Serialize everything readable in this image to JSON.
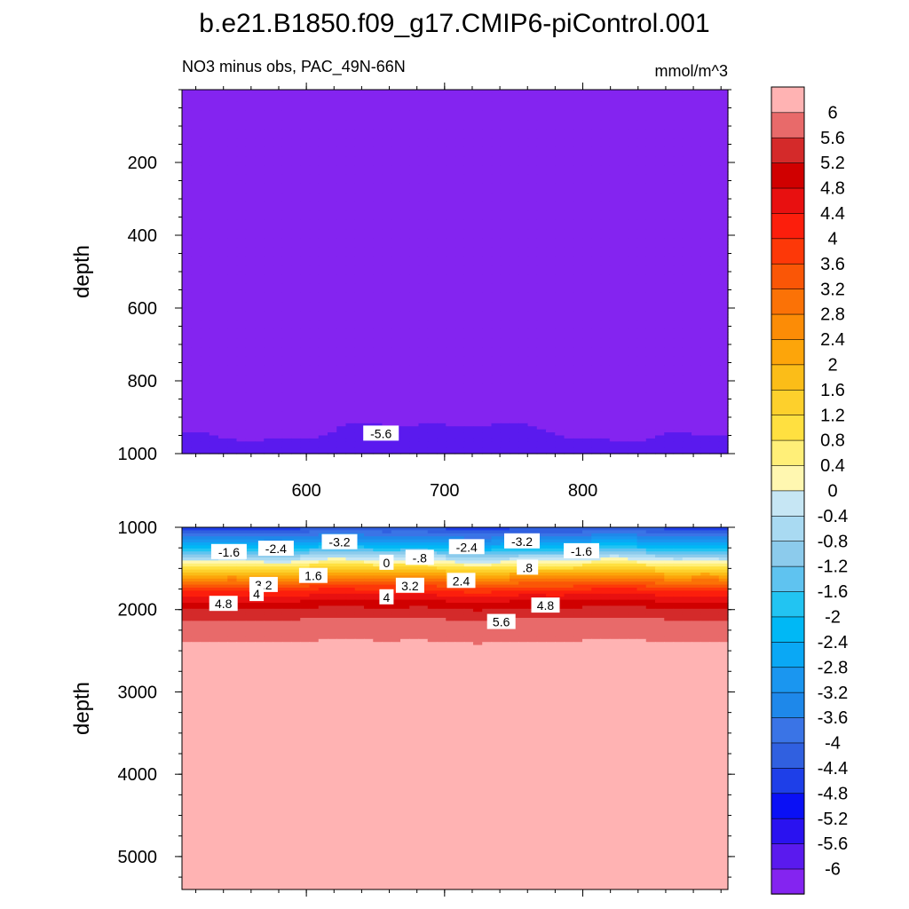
{
  "chart_data": {
    "type": "heatmap",
    "title": "b.e21.B1850.f09_g17.CMIP6-piControl.001",
    "subtitle_left": "NO3 minus obs, PAC_49N-66N",
    "subtitle_right": "mmol/m^3",
    "panels": [
      {
        "name": "upper",
        "ylabel": "depth",
        "xlim": [
          510,
          905
        ],
        "ylim": [
          1000,
          0
        ],
        "yticks": [
          200,
          400,
          600,
          800,
          1000
        ],
        "xticks": [
          600,
          700,
          800
        ],
        "fill_value": -6.2,
        "contour_labels": [
          {
            "text": "-5.6",
            "x": 654,
            "y": 945
          }
        ]
      },
      {
        "name": "lower",
        "ylabel": "depth",
        "xlim": [
          510,
          905
        ],
        "ylim": [
          5400,
          1000
        ],
        "yticks": [
          1000,
          2000,
          3000,
          4000,
          5000
        ],
        "contour_labels": [
          {
            "text": "-1.6",
            "x": 544,
            "y": 1300
          },
          {
            "text": "-2.4",
            "x": 578,
            "y": 1260
          },
          {
            "text": "-3.2",
            "x": 624,
            "y": 1180
          },
          {
            "text": "-2.4",
            "x": 716,
            "y": 1240
          },
          {
            "text": "-3.2",
            "x": 756,
            "y": 1170
          },
          {
            "text": "-1.6",
            "x": 799,
            "y": 1290
          },
          {
            "text": ".8",
            "x": 760,
            "y": 1490
          },
          {
            "text": "-.8",
            "x": 682,
            "y": 1370
          },
          {
            "text": "0",
            "x": 658,
            "y": 1430
          },
          {
            "text": "1.6",
            "x": 605,
            "y": 1590
          },
          {
            "text": "3.2",
            "x": 569,
            "y": 1700
          },
          {
            "text": "3.2",
            "x": 675,
            "y": 1710
          },
          {
            "text": "2.4",
            "x": 712,
            "y": 1650
          },
          {
            "text": "4",
            "x": 564,
            "y": 1810
          },
          {
            "text": "4",
            "x": 658,
            "y": 1850
          },
          {
            "text": "4.8",
            "x": 540,
            "y": 1930
          },
          {
            "text": "4.8",
            "x": 773,
            "y": 1950
          },
          {
            "text": "5.6",
            "x": 741,
            "y": 2150
          }
        ]
      }
    ],
    "colorbar": {
      "levels": [
        -6,
        -5.6,
        -5.2,
        -4.8,
        -4.4,
        -4,
        -3.6,
        -3.2,
        -2.8,
        -2.4,
        -2,
        -1.6,
        -1.2,
        -0.8,
        -0.4,
        0,
        0.4,
        0.8,
        1.2,
        1.6,
        2,
        2.4,
        2.8,
        3.2,
        3.6,
        4,
        4.4,
        4.8,
        5.2,
        5.6,
        6
      ],
      "labels": [
        "-6",
        "-5.6",
        "-5.2",
        "-4.8",
        "-4.4",
        "-4",
        "-3.6",
        "-3.2",
        "-2.8",
        "-2.4",
        "-2",
        "-1.6",
        "-1.2",
        "-0.8",
        "-0.4",
        "0",
        "0.4",
        "0.8",
        "1.2",
        "1.6",
        "2",
        "2.4",
        "2.8",
        "3.2",
        "3.6",
        "4",
        "4.4",
        "4.8",
        "5.2",
        "5.6",
        "6"
      ],
      "colors": [
        "#8424f0",
        "#5a1aee",
        "#2a12f0",
        "#0a10f5",
        "#1e3fe8",
        "#3060e0",
        "#3a74e6",
        "#1e88ea",
        "#1a96f0",
        "#0aa8f5",
        "#00b8f5",
        "#22c4f2",
        "#5fc3f0",
        "#8ccbec",
        "#a9daf2",
        "#c6e6f4",
        "#fff7b0",
        "#ffef78",
        "#ffe040",
        "#fdd02c",
        "#fbbd18",
        "#fda50a",
        "#fc8c06",
        "#fb7206",
        "#fa5606",
        "#fd3808",
        "#fc1e0c",
        "#e81010",
        "#d00000",
        "#d42a2a",
        "#e86a6a",
        "#ffb3b3"
      ]
    }
  }
}
